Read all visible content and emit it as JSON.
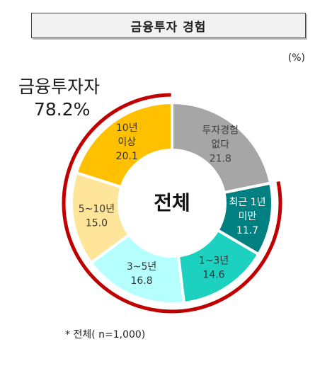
{
  "title": "금융투자 경험",
  "unit": "(%)",
  "investor_summary": {
    "label": "금융투자자",
    "value": "78.2%"
  },
  "note": "* 전체( n=1,000)",
  "chart_data": {
    "type": "pie",
    "center_label": "전체",
    "slices": [
      {
        "lines": [
          "투자경험",
          "없다"
        ],
        "value": 21.8,
        "color": "#a6a6a6",
        "text_color": "#404040"
      },
      {
        "lines": [
          "최근 1년",
          "미만"
        ],
        "value": 11.7,
        "color": "#008080",
        "text_color": "#ffffff"
      },
      {
        "lines": [
          "1~3년"
        ],
        "value": 14.6,
        "color": "#1dd1c1",
        "text_color": "#333333"
      },
      {
        "lines": [
          "3~5년"
        ],
        "value": 16.8,
        "color": "#b6ffff",
        "text_color": "#333333"
      },
      {
        "lines": [
          "5~10년"
        ],
        "value": 15.0,
        "color": "#ffe599",
        "text_color": "#333333"
      },
      {
        "lines": [
          "10년",
          "이상"
        ],
        "value": 20.1,
        "color": "#ffc000",
        "text_color": "#333333"
      }
    ],
    "highlight_arc_color": "#c00000"
  }
}
